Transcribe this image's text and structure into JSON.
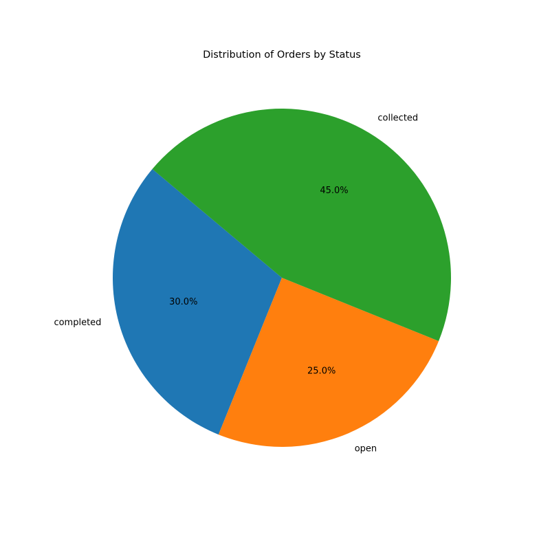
{
  "chart_data": {
    "type": "pie",
    "title": "Distribution of Orders by Status",
    "slices": [
      {
        "label": "completed",
        "value": 30.0,
        "pct_label": "30.0%",
        "color": "#1f77b4"
      },
      {
        "label": "open",
        "value": 25.0,
        "pct_label": "25.0%",
        "color": "#ff7f0e"
      },
      {
        "label": "collected",
        "value": 45.0,
        "pct_label": "45.0%",
        "color": "#2ca02c"
      }
    ],
    "start_angle_deg": 140,
    "direction": "counterclockwise",
    "legend": "none"
  }
}
